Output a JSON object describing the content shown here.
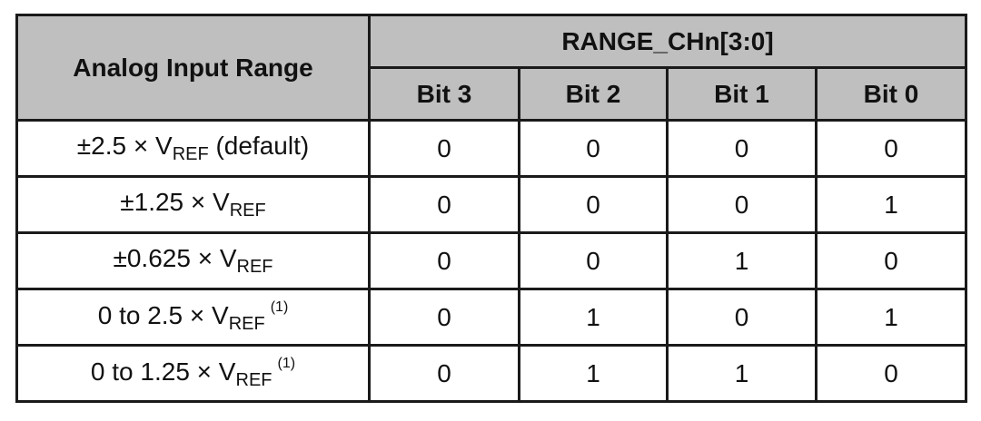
{
  "table": {
    "header_col0": "Analog Input Range",
    "header_group": "RANGE_CHn[3:0]",
    "bit_headers": [
      "Bit 3",
      "Bit 2",
      "Bit 1",
      "Bit 0"
    ],
    "rows": [
      {
        "pre": "±2.5 × V",
        "sub": "REF",
        "post": " (default)",
        "note": "",
        "bits": [
          "0",
          "0",
          "0",
          "0"
        ]
      },
      {
        "pre": "±1.25 × V",
        "sub": "REF",
        "post": "",
        "note": "",
        "bits": [
          "0",
          "0",
          "0",
          "1"
        ]
      },
      {
        "pre": "±0.625 × V",
        "sub": "REF",
        "post": "",
        "note": "",
        "bits": [
          "0",
          "0",
          "1",
          "0"
        ]
      },
      {
        "pre": "0 to 2.5 × V",
        "sub": "REF",
        "post": "",
        "note": "(1)",
        "bits": [
          "0",
          "1",
          "0",
          "1"
        ]
      },
      {
        "pre": "0 to 1.25 × V",
        "sub": "REF",
        "post": "",
        "note": "(1)",
        "bits": [
          "0",
          "1",
          "1",
          "0"
        ]
      }
    ]
  }
}
